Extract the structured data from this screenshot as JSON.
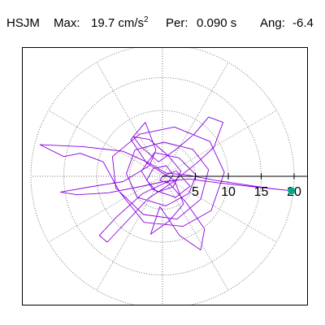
{
  "header": {
    "station": "HSJM",
    "max_label": "Max:",
    "max_value": "19.7 cm/s",
    "max_exp": "2",
    "per_label": "Per:",
    "per_value": "0.090 s",
    "ang_label": "Ang:",
    "ang_value": "-6.4"
  },
  "colors": {
    "trace": "#8800dd",
    "marker": "#00aa88",
    "grid": "#777777",
    "axis": "#000000"
  },
  "chart_data": {
    "type": "scatter",
    "subtype": "polar-particle-motion",
    "title": "HSJM  Max:  19.7 cm/s2  Per:  0.090 s  Ang:  -6.4",
    "radial_ticks": [
      "5",
      "10",
      "15",
      "20"
    ],
    "radial_tick_values": [
      5,
      10,
      15,
      20
    ],
    "rmax": 20,
    "grid": true,
    "max_point": {
      "amplitude": 19.7,
      "angle_deg": -6.4
    },
    "trace_points": [
      [
        0,
        0
      ],
      [
        2.1,
        0.8
      ],
      [
        4.2,
        -1.5
      ],
      [
        2.0,
        -3.2
      ],
      [
        -1.5,
        -2.0
      ],
      [
        -3.2,
        0.8
      ],
      [
        -1.2,
        3.6
      ],
      [
        2.5,
        2.8
      ],
      [
        5.1,
        0.2
      ],
      [
        4.0,
        -2.6
      ],
      [
        0.5,
        -4.5
      ],
      [
        -3.8,
        -3.2
      ],
      [
        -5.5,
        0.4
      ],
      [
        -4.2,
        4.0
      ],
      [
        0.2,
        5.2
      ],
      [
        4.6,
        4.1
      ],
      [
        7.0,
        1.0
      ],
      [
        5.8,
        -3.5
      ],
      [
        2.2,
        -6.5
      ],
      [
        -2.9,
        -5.8
      ],
      [
        -7.1,
        -1.8
      ],
      [
        -7.6,
        3.0
      ],
      [
        -3.5,
        6.4
      ],
      [
        1.8,
        7.5
      ],
      [
        7.2,
        5.3
      ],
      [
        9.4,
        0.6
      ],
      [
        7.4,
        -5.2
      ],
      [
        3.1,
        -7.6
      ],
      [
        -2.8,
        -7.0
      ],
      [
        -6.5,
        -2.4
      ],
      [
        -9.0,
        2.2
      ],
      [
        -12.5,
        3.5
      ],
      [
        -15.0,
        3.0
      ],
      [
        -18.6,
        4.8
      ],
      [
        -12.0,
        4.5
      ],
      [
        -6.0,
        3.8
      ],
      [
        -2.0,
        2.0
      ],
      [
        0.5,
        0.5
      ],
      [
        3.8,
        0.2
      ],
      [
        8.0,
        -0.6
      ],
      [
        12.0,
        -1.2
      ],
      [
        16.0,
        -1.8
      ],
      [
        19.6,
        -2.2
      ],
      [
        14.0,
        -1.6
      ],
      [
        8.5,
        -1.0
      ],
      [
        4.0,
        -0.4
      ],
      [
        0.2,
        -0.8
      ],
      [
        -3.6,
        -1.6
      ],
      [
        -8.2,
        -2.5
      ],
      [
        -13.0,
        -2.8
      ],
      [
        -15.5,
        -2.4
      ],
      [
        -11.0,
        -1.6
      ],
      [
        -6.0,
        -0.8
      ],
      [
        -2.0,
        1.6
      ],
      [
        -1.0,
        4.0
      ],
      [
        -2.6,
        8.2
      ],
      [
        -4.8,
        5.6
      ],
      [
        -2.4,
        2.0
      ],
      [
        1.8,
        -0.6
      ],
      [
        3.2,
        -4.2
      ],
      [
        1.0,
        -6.8
      ],
      [
        -1.8,
        -8.8
      ],
      [
        -0.4,
        -4.6
      ],
      [
        2.6,
        -9.0
      ],
      [
        5.8,
        -11.2
      ],
      [
        6.4,
        -8.0
      ],
      [
        3.6,
        -4.0
      ],
      [
        0.8,
        -0.8
      ],
      [
        -3.0,
        -2.6
      ],
      [
        -7.0,
        -6.2
      ],
      [
        -9.6,
        -9.0
      ],
      [
        -8.4,
        -10.0
      ],
      [
        -5.2,
        -6.6
      ],
      [
        -2.2,
        -3.4
      ],
      [
        1.4,
        -1.0
      ],
      [
        5.2,
        2.0
      ],
      [
        7.8,
        4.4
      ],
      [
        9.2,
        8.2
      ],
      [
        7.0,
        9.0
      ],
      [
        4.8,
        6.4
      ],
      [
        2.2,
        4.2
      ],
      [
        -0.6,
        2.2
      ],
      [
        -3.4,
        4.6
      ],
      [
        -4.4,
        6.0
      ],
      [
        -2.0,
        5.6
      ],
      [
        0.8,
        3.2
      ],
      [
        2.8,
        0.8
      ],
      [
        1.6,
        -1.6
      ],
      [
        -0.8,
        -2.4
      ],
      [
        -2.4,
        -0.6
      ],
      [
        -1.4,
        1.2
      ],
      [
        0.6,
        1.6
      ],
      [
        1.6,
        0.2
      ],
      [
        0.8,
        -1.0
      ],
      [
        -0.4,
        -0.6
      ],
      [
        0,
        0
      ]
    ],
    "marker_point": [
      19.6,
      -2.2
    ]
  }
}
